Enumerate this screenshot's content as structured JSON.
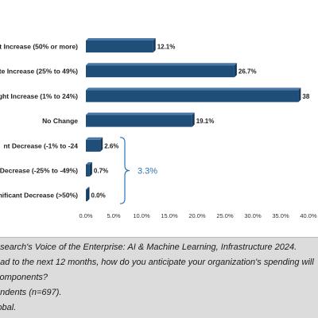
{
  "chart_data": {
    "type": "bar",
    "orientation": "horizontal",
    "categories": [
      "t Increase (50% or more)",
      "te Increase (25% to 49%)",
      "ght Increase (1% to 24%)",
      "No Change",
      "nt Decrease (-1% to -24",
      "Decrease (-25% to -49%)",
      "nificant Decrease (>50%)"
    ],
    "values": [
      12.1,
      26.7,
      38.2,
      19.1,
      2.6,
      0.7,
      0.0
    ],
    "value_labels": [
      "12.1%",
      "26.7%",
      "38",
      "19.1%",
      "2.6%",
      "0.7%",
      "0.0%"
    ],
    "xlim": [
      0,
      40
    ],
    "xticks": [
      "0.0%",
      "5.0%",
      "10.0%",
      "15.0%",
      "20.0%",
      "25.0%",
      "30.0%",
      "35.0%",
      "40.0%"
    ],
    "grid": false,
    "bar_color": "#1F4E79",
    "annotation": {
      "text": "3.3%",
      "color": "#2E75B6",
      "spans_categories": [
        4,
        6
      ]
    }
  },
  "notes": [
    "esearch's Voice of the Enterprise: AI & Machine Learning, Infrastructure 2024.",
    "ead to the next 12 months, how do you anticipate your organization's spending will",
    "components?",
    "ondents (n=697).",
    "lobal."
  ]
}
